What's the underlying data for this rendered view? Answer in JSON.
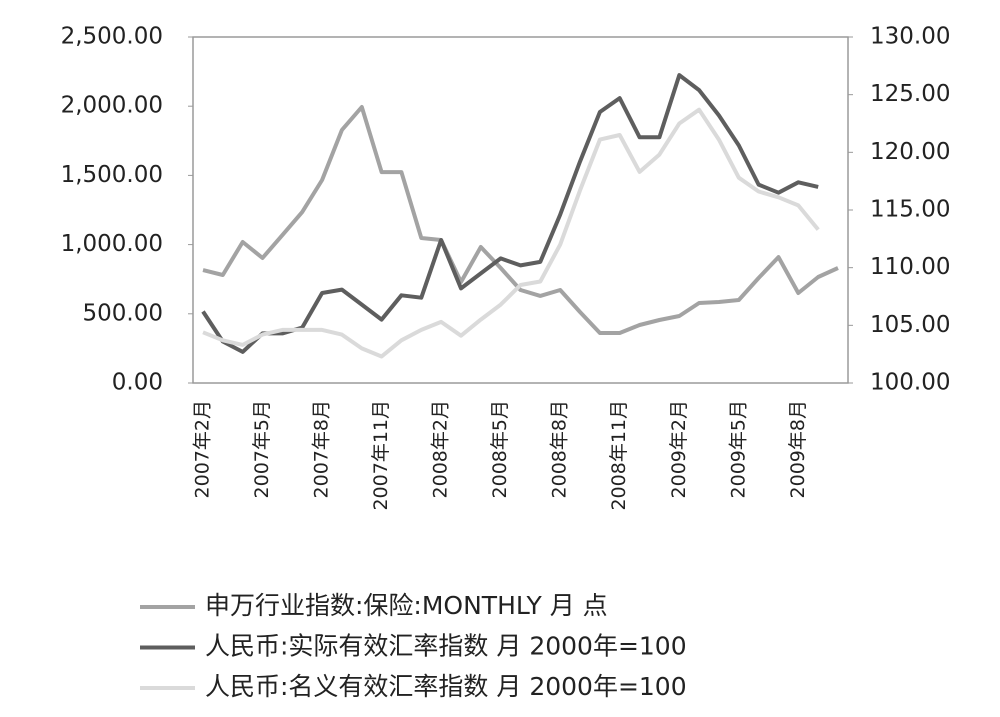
{
  "chart_data": {
    "type": "line",
    "categories": [
      "2007年2月",
      null,
      null,
      "2007年5月",
      null,
      null,
      "2007年8月",
      null,
      null,
      "2007年11月",
      null,
      null,
      "2008年2月",
      null,
      null,
      "2008年5月",
      null,
      null,
      "2008年8月",
      null,
      null,
      "2008年11月",
      null,
      null,
      "2009年2月",
      null,
      null,
      "2009年5月",
      null,
      null,
      "2009年8月",
      null,
      null
    ],
    "series": [
      {
        "name": "申万行业指数:保险:MONTHLY 月 点",
        "color": "#a3a3a3",
        "axis": "y",
        "values": [
          816,
          780,
          1019,
          903,
          1069,
          1235,
          1467,
          1828,
          1994,
          1524,
          1524,
          1048,
          1033,
          730,
          983,
          831,
          672,
          629,
          672,
          513,
          361,
          361,
          419,
          455,
          484,
          578,
          585,
          600,
          759,
          910,
          650,
          766,
          831
        ]
      },
      {
        "name": "人民币:实际有效汇率指数 月 2000年=100",
        "color": "#5e5e5e",
        "axis": "y2",
        "values": [
          106.2,
          103.6,
          102.7,
          104.3,
          104.3,
          104.8,
          107.8,
          108.1,
          106.8,
          105.5,
          107.6,
          107.4,
          112.4,
          108.2,
          109.5,
          110.8,
          110.2,
          110.5,
          114.6,
          119.2,
          123.5,
          124.7,
          121.3,
          121.3,
          126.7,
          125.4,
          123.2,
          120.6,
          117.2,
          116.5,
          117.4,
          117.0,
          null
        ]
      },
      {
        "name": "人民币:名义有效汇率指数 月 2000年=100",
        "color": "#dadada",
        "axis": "y2",
        "values": [
          104.4,
          103.7,
          103.3,
          104.2,
          104.6,
          104.6,
          104.6,
          104.2,
          103.0,
          102.3,
          103.7,
          104.6,
          105.3,
          104.1,
          105.5,
          106.8,
          108.5,
          108.8,
          112.0,
          116.7,
          121.1,
          121.5,
          118.3,
          119.8,
          122.5,
          123.7,
          121.1,
          117.8,
          116.6,
          116.1,
          115.4,
          113.3,
          null
        ]
      }
    ],
    "ylim": [
      0,
      2500
    ],
    "yticks": [
      {
        "value": 0,
        "label": "0.00"
      },
      {
        "value": 500,
        "label": "500.00"
      },
      {
        "value": 1000,
        "label": "1,000.00"
      },
      {
        "value": 1500,
        "label": "1,500.00"
      },
      {
        "value": 2000,
        "label": "2,000.00"
      },
      {
        "value": 2500,
        "label": "2,500.00"
      }
    ],
    "y2lim": [
      100,
      130
    ],
    "y2ticks": [
      {
        "value": 100,
        "label": "100.00"
      },
      {
        "value": 105,
        "label": "105.00"
      },
      {
        "value": 110,
        "label": "110.00"
      },
      {
        "value": 115,
        "label": "115.00"
      },
      {
        "value": 120,
        "label": "120.00"
      },
      {
        "value": 125,
        "label": "125.00"
      },
      {
        "value": 130,
        "label": "130.00"
      }
    ],
    "legend": "bottom"
  }
}
